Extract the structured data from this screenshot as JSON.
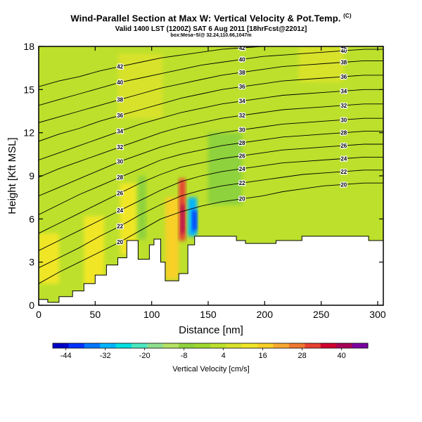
{
  "header": {
    "title": "Wind-Parallel Section at Max W: Vertical Velocity & Pot.Temp.",
    "copyright": "(C)",
    "valid": "Valid 1400 LST (1200Z) SAT 6 Aug 2011 [18hrFcst@2201z]",
    "coords": "box:Mesa~5/@ 32.24,110.66,1047m"
  },
  "chart_data": {
    "type": "heatmap",
    "title": "Wind-Parallel Section at Max W: Vertical Velocity & Pot.Temp.",
    "xlabel": "Distance [nm]",
    "ylabel": "Height [Kft MSL]",
    "xlim": [
      0,
      305
    ],
    "ylim": [
      0,
      18
    ],
    "x_ticks": [
      0,
      50,
      100,
      150,
      200,
      250,
      300
    ],
    "y_ticks": [
      0,
      3,
      6,
      9,
      12,
      15,
      18
    ],
    "terrain": [
      [
        0,
        0.4
      ],
      [
        8,
        0.4
      ],
      [
        8,
        0.2
      ],
      [
        18,
        0.2
      ],
      [
        18,
        0.6
      ],
      [
        30,
        0.6
      ],
      [
        30,
        1.0
      ],
      [
        40,
        1.0
      ],
      [
        40,
        1.5
      ],
      [
        50,
        1.5
      ],
      [
        50,
        2.1
      ],
      [
        60,
        2.1
      ],
      [
        60,
        2.8
      ],
      [
        70,
        2.8
      ],
      [
        70,
        3.3
      ],
      [
        78,
        3.3
      ],
      [
        78,
        4.5
      ],
      [
        88,
        4.5
      ],
      [
        88,
        3.2
      ],
      [
        98,
        3.2
      ],
      [
        98,
        4.2
      ],
      [
        102,
        4.2
      ],
      [
        102,
        4.6
      ],
      [
        108,
        4.6
      ],
      [
        108,
        3.0
      ],
      [
        112,
        3.0
      ],
      [
        112,
        1.7
      ],
      [
        124,
        1.7
      ],
      [
        124,
        2.2
      ],
      [
        132,
        2.2
      ],
      [
        132,
        4.2
      ],
      [
        138,
        4.2
      ],
      [
        138,
        4.8
      ],
      [
        175,
        4.8
      ],
      [
        175,
        4.5
      ],
      [
        183,
        4.5
      ],
      [
        183,
        4.3
      ],
      [
        210,
        4.3
      ],
      [
        210,
        4.5
      ],
      [
        233,
        4.5
      ],
      [
        233,
        4.8
      ],
      [
        292,
        4.8
      ],
      [
        292,
        4.5
      ],
      [
        305,
        4.5
      ]
    ],
    "isentropes": [
      {
        "label": "20",
        "y": [
          1.5,
          2.3,
          3.0,
          3.7,
          4.4,
          5.2,
          6.0,
          6.5,
          6.9,
          7.2,
          7.4,
          7.6,
          7.9,
          8.1,
          8.3,
          8.4,
          8.5,
          8.5
        ]
      },
      {
        "label": "22",
        "y": [
          2.6,
          3.3,
          4.0,
          4.8,
          5.5,
          6.3,
          7.0,
          7.6,
          8.0,
          8.3,
          8.5,
          8.7,
          8.9,
          9.1,
          9.2,
          9.3,
          9.4,
          9.4
        ]
      },
      {
        "label": "24",
        "y": [
          3.8,
          4.5,
          5.2,
          5.9,
          6.6,
          7.3,
          8.0,
          8.6,
          9.0,
          9.3,
          9.5,
          9.7,
          9.9,
          10.0,
          10.1,
          10.2,
          10.3,
          10.3
        ]
      },
      {
        "label": "26",
        "y": [
          5.0,
          5.7,
          6.4,
          7.1,
          7.8,
          8.5,
          9.1,
          9.6,
          9.9,
          10.2,
          10.4,
          10.6,
          10.8,
          10.9,
          11.0,
          11.1,
          11.2,
          11.2
        ]
      },
      {
        "label": "28",
        "y": [
          6.3,
          7.0,
          7.7,
          8.3,
          8.9,
          9.5,
          10.1,
          10.5,
          10.8,
          11.1,
          11.3,
          11.5,
          11.7,
          11.8,
          11.9,
          12.0,
          12.1,
          12.1
        ]
      },
      {
        "label": "30",
        "y": [
          7.6,
          8.2,
          8.8,
          9.4,
          10.0,
          10.5,
          11.0,
          11.4,
          11.7,
          12.0,
          12.2,
          12.4,
          12.6,
          12.7,
          12.8,
          12.9,
          13.0,
          13.0
        ]
      },
      {
        "label": "32",
        "y": [
          8.9,
          9.5,
          10.0,
          10.5,
          11.0,
          11.5,
          12.0,
          12.4,
          12.7,
          13.0,
          13.2,
          13.4,
          13.6,
          13.7,
          13.8,
          13.9,
          14.0,
          14.0
        ]
      },
      {
        "label": "34",
        "y": [
          10.1,
          10.6,
          11.1,
          11.6,
          12.1,
          12.6,
          13.0,
          13.4,
          13.7,
          14.0,
          14.2,
          14.4,
          14.6,
          14.7,
          14.8,
          14.9,
          15.0,
          15.0
        ]
      },
      {
        "label": "36",
        "y": [
          11.4,
          11.9,
          12.3,
          12.8,
          13.2,
          13.6,
          14.0,
          14.4,
          14.7,
          15.0,
          15.2,
          15.4,
          15.6,
          15.7,
          15.8,
          15.9,
          16.0,
          16.0
        ]
      },
      {
        "label": "38",
        "y": [
          12.7,
          13.1,
          13.5,
          13.9,
          14.3,
          14.7,
          15.1,
          15.4,
          15.7,
          16.0,
          16.2,
          16.4,
          16.6,
          16.7,
          16.8,
          16.9,
          17.0,
          17.0
        ]
      },
      {
        "label": "40",
        "y": [
          13.9,
          14.3,
          14.7,
          15.1,
          15.5,
          15.8,
          16.1,
          16.4,
          16.7,
          16.9,
          17.1,
          17.3,
          17.4,
          17.5,
          17.6,
          17.7,
          17.8,
          17.8
        ]
      },
      {
        "label": "42",
        "y": [
          15.2,
          15.6,
          15.9,
          16.3,
          16.6,
          16.9,
          17.2,
          17.4,
          17.6,
          17.8,
          17.9,
          18.0,
          18.0,
          18.0,
          18.0,
          18.0,
          18.0,
          18.0
        ]
      }
    ],
    "contour_x": [
      0,
      18,
      36,
      54,
      72,
      90,
      108,
      126,
      144,
      162,
      180,
      198,
      216,
      234,
      252,
      270,
      288,
      305
    ],
    "updrafts": [
      {
        "x": [
          40,
          58
        ],
        "y": [
          0.6,
          6.2
        ],
        "w": 14
      },
      {
        "x": [
          0,
          18
        ],
        "y": [
          1.5,
          5.0
        ],
        "w": 10
      },
      {
        "x": [
          72,
          86
        ],
        "y": [
          3.5,
          8.5
        ],
        "w": 12
      },
      {
        "x": [
          112,
          124
        ],
        "y": [
          1.8,
          7.5
        ],
        "w": 16
      },
      {
        "x": [
          124,
          130
        ],
        "y": [
          4.5,
          8.8
        ],
        "w": 30
      },
      {
        "x": [
          126,
          129
        ],
        "y": [
          5.0,
          7.0
        ],
        "w": 40
      },
      {
        "x": [
          70,
          110
        ],
        "y": [
          13.0,
          17.5
        ],
        "w": 8
      },
      {
        "x": [
          230,
          270
        ],
        "y": [
          15.5,
          18.0
        ],
        "w": 8
      }
    ],
    "downdrafts": [
      {
        "x": [
          132,
          140
        ],
        "y": [
          4.8,
          7.5
        ],
        "w": -30
      },
      {
        "x": [
          136,
          140
        ],
        "y": [
          5.2,
          6.6
        ],
        "w": -40
      },
      {
        "x": [
          88,
          95
        ],
        "y": [
          4.6,
          9.0
        ],
        "w": -8
      },
      {
        "x": [
          150,
          180
        ],
        "y": [
          7.0,
          12.0
        ],
        "w": -6
      }
    ],
    "colorbar": {
      "label": "Vertical Velocity [cm/s]",
      "ticks": [
        -44,
        -32,
        -20,
        -8,
        4,
        16,
        28,
        40
      ],
      "vmin": -48,
      "vmax": 48,
      "colors": [
        "#0000c8",
        "#0033ff",
        "#0077ff",
        "#00b4ff",
        "#00e0e0",
        "#4ce8c0",
        "#8ee08e",
        "#b4e264",
        "#8ed23c",
        "#a0d830",
        "#bce02c",
        "#d8e22c",
        "#f0e628",
        "#f8d028",
        "#f8a830",
        "#f07830",
        "#e84030",
        "#d00030",
        "#a80058",
        "#7c00a0"
      ]
    }
  }
}
